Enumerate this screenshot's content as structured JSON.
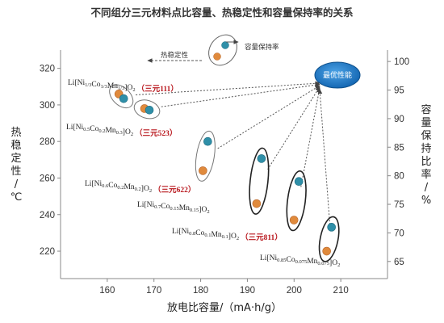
{
  "chart_data": {
    "type": "scatter",
    "title": "不同组分三元材料点比容量、热稳定性和容量保持率的关系",
    "xlabel": "放电比容量/（mA·h/g）",
    "ylabel_left": "热稳定性/℃",
    "ylabel_right": "容量保持比率/%",
    "xlim": [
      150,
      220
    ],
    "ylim_left": [
      205,
      330
    ],
    "ylim_right": [
      62,
      102
    ],
    "x_ticks": [
      "160",
      "170",
      "180",
      "190",
      "200",
      "210"
    ],
    "y_left_ticks": [
      "220",
      "240",
      "260",
      "280",
      "300",
      "320"
    ],
    "y_right_ticks": [
      "65",
      "70",
      "75",
      "80",
      "85",
      "90",
      "95",
      "100"
    ],
    "legend": {
      "thermal": "热稳定性",
      "retention": "容量保持率",
      "target": "最优性能"
    },
    "series": [
      {
        "name": "热稳定性",
        "color": "#e08a3c"
      },
      {
        "name": "容量保持率",
        "color": "#2f8fa8"
      }
    ],
    "materials": [
      {
        "formula": "Li[Ni1/3Co1/3Mn1/3]O2",
        "tag": "（三元111）",
        "capacity": 163,
        "thermal": 306,
        "retention": 93.5
      },
      {
        "formula": "Li[Ni0.5Co0.2Mn0.3]O2",
        "tag": "（三元523）",
        "capacity": 168.5,
        "thermal": 298,
        "retention": 91.5
      },
      {
        "formula": "Li[Ni0.6Co0.2Mn0.2]O2",
        "tag": "（三元622）",
        "capacity": 181,
        "thermal": 264,
        "retention": 86
      },
      {
        "formula": "Li[Ni0.7Co0.15Mn0.15]O2",
        "tag": "",
        "capacity": 192.5,
        "thermal": 246,
        "retention": 83
      },
      {
        "formula": "Li[Ni0.8Co0.1Mn0.1]O2",
        "tag": "（三元811）",
        "capacity": 200.5,
        "thermal": 237,
        "retention": 79
      },
      {
        "formula": "Li[Ni0.85Co0.075Mn0.075]O2",
        "tag": "",
        "capacity": 207.5,
        "thermal": 220,
        "retention": 71
      }
    ]
  }
}
